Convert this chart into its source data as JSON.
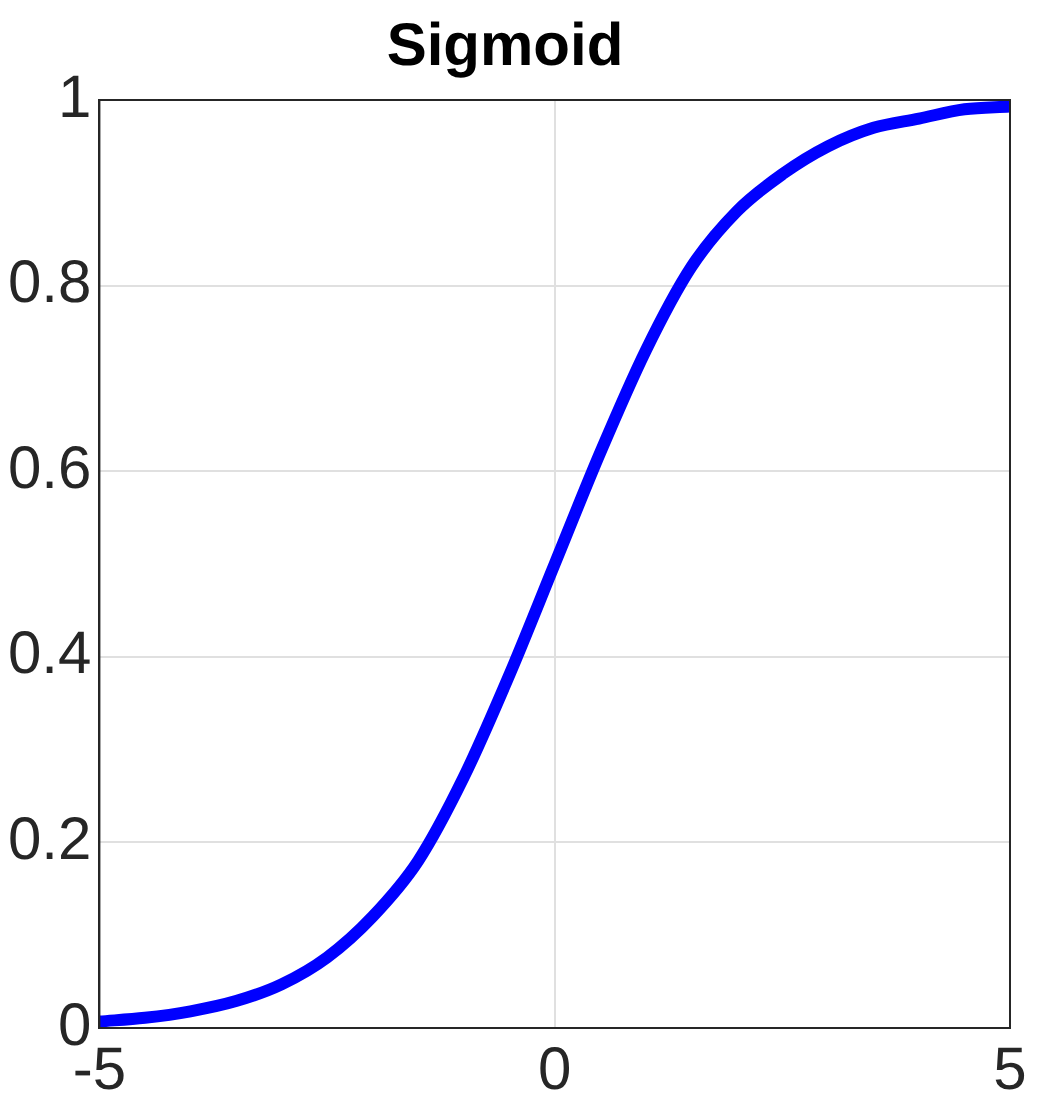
{
  "chart_data": {
    "type": "line",
    "title": "Sigmoid",
    "x": [
      -5,
      -4.5,
      -4,
      -3.5,
      -3,
      -2.5,
      -2,
      -1.5,
      -1,
      -0.5,
      0,
      0.5,
      1,
      1.5,
      2,
      2.5,
      3,
      3.5,
      4,
      4.5,
      5
    ],
    "series": [
      {
        "color": "#0000ff",
        "values": [
          0.007,
          0.011,
          0.018,
          0.029,
          0.047,
          0.076,
          0.12,
          0.18,
          0.27,
          0.38,
          0.5,
          0.62,
          0.73,
          0.82,
          0.88,
          0.92,
          0.95,
          0.97,
          0.98,
          0.99,
          0.993
        ]
      }
    ],
    "xlim": [
      -5,
      5
    ],
    "xticks": [
      -5,
      0,
      5
    ],
    "ylim": [
      0,
      1
    ],
    "yticks": [
      0,
      0.2,
      0.4,
      0.6,
      0.8,
      1
    ],
    "grid": true,
    "legend": false,
    "marker": "none",
    "line_style": "solid"
  }
}
